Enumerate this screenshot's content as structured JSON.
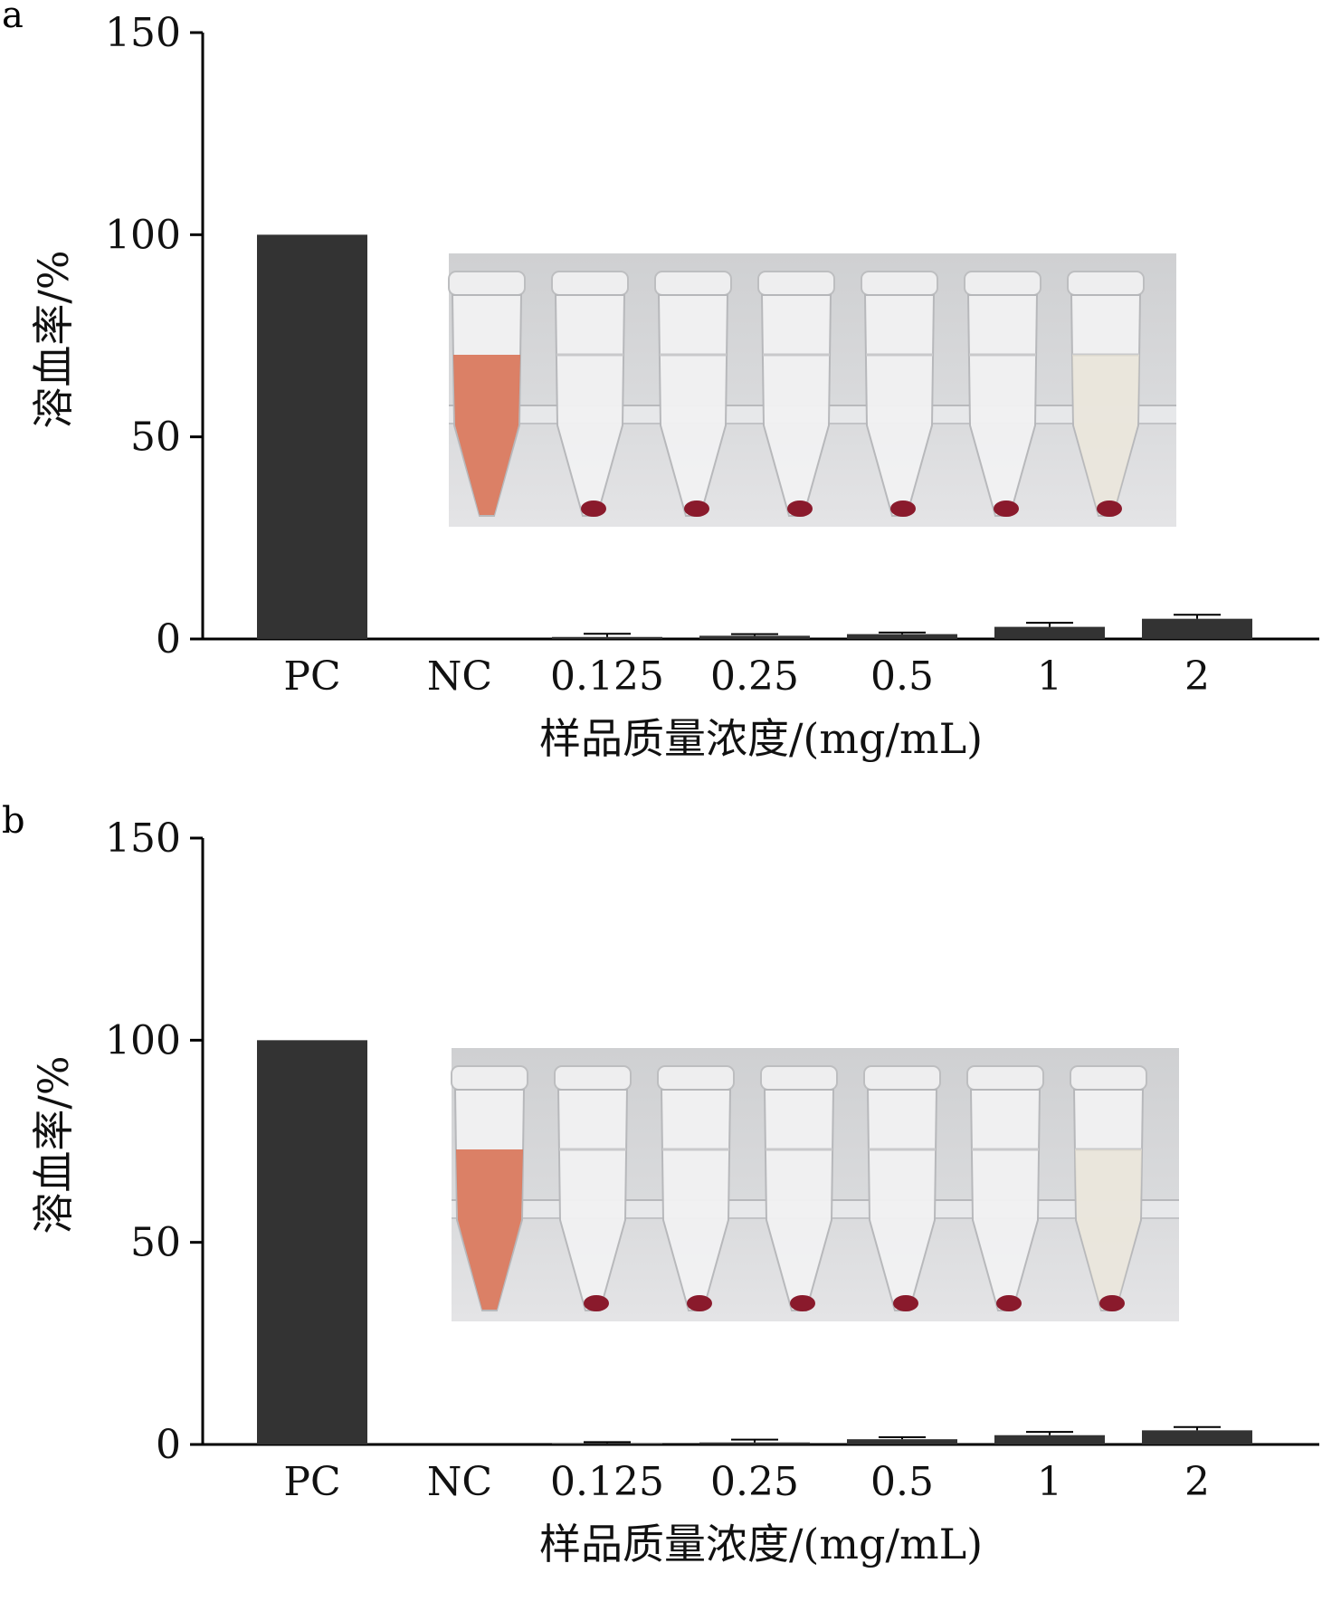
{
  "chart_data": [
    {
      "panel": "a",
      "type": "bar",
      "categories": [
        "PC",
        "NC",
        "0.125",
        "0.25",
        "0.5",
        "1",
        "2"
      ],
      "values": [
        100,
        0,
        0.5,
        0.8,
        1.2,
        3.0,
        5.0
      ],
      "errors": [
        0,
        0,
        0.8,
        0.4,
        0.4,
        1.0,
        1.0
      ],
      "ylabel": "溶血率/%",
      "xlabel": "样品质量浓度/(mg/mL)",
      "ylim": [
        0,
        150
      ],
      "yticks": [
        "0",
        "50",
        "100",
        "150"
      ],
      "bar_color": "#333333",
      "inset": "photo of hemolysis tubes"
    },
    {
      "panel": "b",
      "type": "bar",
      "categories": [
        "PC",
        "NC",
        "0.125",
        "0.25",
        "0.5",
        "1",
        "2"
      ],
      "values": [
        100,
        0,
        0.3,
        0.5,
        1.3,
        2.3,
        3.5
      ],
      "errors": [
        0,
        0,
        0.3,
        0.7,
        0.5,
        0.8,
        0.8
      ],
      "ylabel": "溶血率/%",
      "xlabel": "样品质量浓度/(mg/mL)",
      "ylim": [
        0,
        150
      ],
      "yticks": [
        "0",
        "50",
        "100",
        "150"
      ],
      "bar_color": "#333333",
      "inset": "photo of hemolysis tubes"
    }
  ]
}
